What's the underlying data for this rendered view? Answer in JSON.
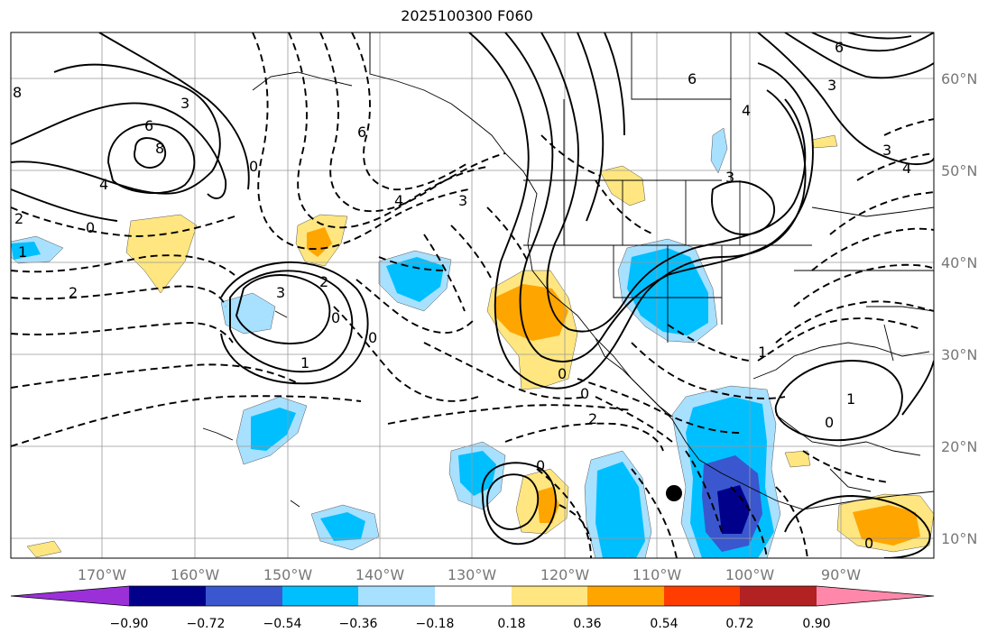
{
  "title": "2025100300 F060",
  "axes": {
    "lon_labels": [
      "170°W",
      "160°W",
      "150°W",
      "140°W",
      "130°W",
      "120°W",
      "110°W",
      "100°W",
      "90°W"
    ],
    "lat_labels": [
      "60°N",
      "50°N",
      "40°N",
      "30°N",
      "20°N",
      "10°N"
    ]
  },
  "colorbar": {
    "labels": [
      "−0.90",
      "−0.72",
      "−0.54",
      "−0.36",
      "−0.18",
      "0.18",
      "0.36",
      "0.54",
      "0.72",
      "0.90"
    ],
    "colors": [
      "#9b30d9",
      "#00008b",
      "#3a57cf",
      "#00bfff",
      "#a8e0ff",
      "#ffffff",
      "#ffe680",
      "#ffa500",
      "#ff3d00",
      "#b22222",
      "#ff88aa"
    ]
  },
  "contour_labels": [
    {
      "text": "8"
    },
    {
      "text": "3"
    },
    {
      "text": "6"
    },
    {
      "text": "8"
    },
    {
      "text": "4"
    },
    {
      "text": "0"
    },
    {
      "text": "2"
    },
    {
      "text": "1"
    },
    {
      "text": "2"
    },
    {
      "text": "0"
    },
    {
      "text": "6"
    },
    {
      "text": "4"
    },
    {
      "text": "3"
    },
    {
      "text": "2"
    },
    {
      "text": "0"
    },
    {
      "text": "0"
    },
    {
      "text": "1"
    },
    {
      "text": "3"
    },
    {
      "text": "0"
    },
    {
      "text": "2"
    },
    {
      "text": "0"
    },
    {
      "text": "6"
    },
    {
      "text": "4"
    },
    {
      "text": "3"
    },
    {
      "text": "6"
    },
    {
      "text": "3"
    },
    {
      "text": "3"
    },
    {
      "text": "4"
    },
    {
      "text": "1"
    },
    {
      "text": "0"
    },
    {
      "text": "1"
    },
    {
      "text": "0"
    },
    {
      "text": "0"
    }
  ],
  "marker": {
    "name": "storm-center-dot"
  }
}
